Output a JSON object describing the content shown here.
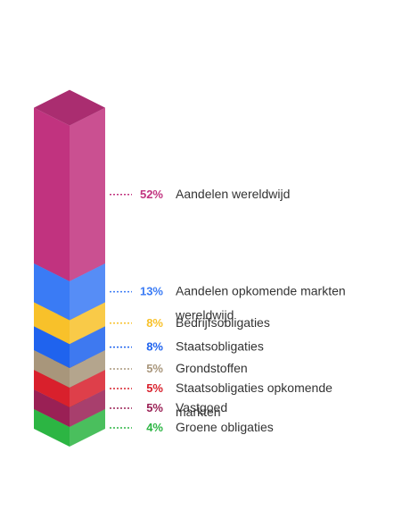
{
  "chart_data": {
    "type": "bar",
    "stacked": true,
    "title": "",
    "categories": [
      "Aandelen wereldwijd",
      "Aandelen opkomende markten wereldwijd",
      "Bedrijfsobligaties",
      "Staatsobligaties",
      "Grondstoffen",
      "Staatsobligaties opkomende markten",
      "Vastgoed",
      "Groene obligaties"
    ],
    "label_lines": [
      [
        "Aandelen wereldwijd"
      ],
      [
        "Aandelen opkomende markten",
        "wereldwijd"
      ],
      [
        "Bedrijfsobligaties"
      ],
      [
        "Staatsobligaties"
      ],
      [
        "Grondstoffen"
      ],
      [
        "Staatsobligaties opkomende",
        "markten"
      ],
      [
        "Vastgoed"
      ],
      [
        "Groene obligaties"
      ]
    ],
    "values": [
      52,
      13,
      8,
      8,
      5,
      5,
      5,
      4
    ],
    "value_labels": [
      "52%",
      "13%",
      "8%",
      "8%",
      "5%",
      "5%",
      "5%",
      "4%"
    ],
    "unit": "%",
    "colors": [
      "#c1337f",
      "#3a7bf5",
      "#f8c12a",
      "#1f63ee",
      "#a8967b",
      "#d9202c",
      "#9a2055",
      "#2cb543"
    ],
    "legend": "right"
  }
}
